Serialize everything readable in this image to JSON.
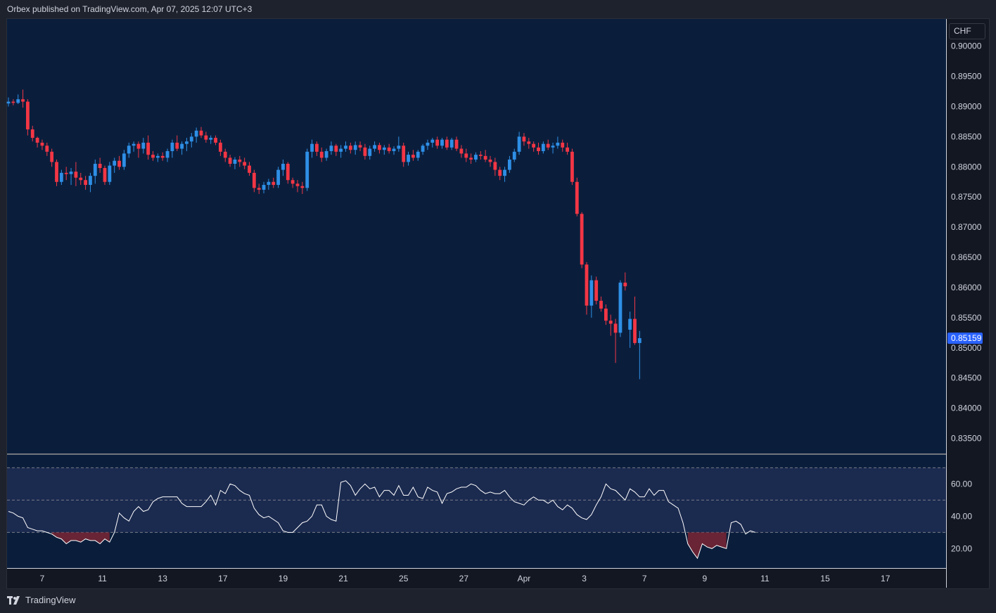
{
  "header": {
    "published": "Orbex published on TradingView.com, Apr 07, 2025 12:07 UTC+3"
  },
  "currency": "CHF",
  "footer": {
    "brand": "TradingView",
    "logo_icon": "tradingview-logo-icon"
  },
  "colors": {
    "up": "#2e8fe6",
    "down": "#f23645",
    "background": "#0a1e3c",
    "rsi_line": "#ffffff",
    "rsi_band": "#1b2a4f",
    "oversold_fill": "#7a2634"
  },
  "chart_data": [
    {
      "type": "candlestick",
      "y_ticks": [
        "0.90000",
        "0.89500",
        "0.89000",
        "0.88500",
        "0.88000",
        "0.87500",
        "0.87000",
        "0.86500",
        "0.86000",
        "0.85500",
        "0.85000",
        "0.84500",
        "0.84000",
        "0.83500"
      ],
      "ylim": [
        0.8325,
        0.9045
      ],
      "x_ticks": [
        {
          "label": "7",
          "index": 7
        },
        {
          "label": "11",
          "index": 19.5
        },
        {
          "label": "13",
          "index": 32
        },
        {
          "label": "17",
          "index": 44.5
        },
        {
          "label": "19",
          "index": 57
        },
        {
          "label": "21",
          "index": 69.5
        },
        {
          "label": "25",
          "index": 82
        },
        {
          "label": "27",
          "index": 94.5
        },
        {
          "label": "Apr",
          "index": 107
        },
        {
          "label": "3",
          "index": 119.5
        },
        {
          "label": "7",
          "index": 132
        },
        {
          "label": "9",
          "index": 144.5
        },
        {
          "label": "11",
          "index": 157
        },
        {
          "label": "15",
          "index": 169.5
        },
        {
          "label": "17",
          "index": 182
        }
      ],
      "last_price": "0.85159",
      "candles": [
        [
          0.8905,
          0.8915,
          0.89,
          0.8908
        ],
        [
          0.8908,
          0.8912,
          0.8902,
          0.8906
        ],
        [
          0.8906,
          0.892,
          0.8904,
          0.8912
        ],
        [
          0.8912,
          0.8928,
          0.8898,
          0.8908
        ],
        [
          0.8908,
          0.8912,
          0.8852,
          0.8862
        ],
        [
          0.8862,
          0.8868,
          0.8842,
          0.8848
        ],
        [
          0.8848,
          0.885,
          0.8832,
          0.884
        ],
        [
          0.884,
          0.8845,
          0.8828,
          0.8835
        ],
        [
          0.8835,
          0.884,
          0.8818,
          0.8825
        ],
        [
          0.8825,
          0.883,
          0.88,
          0.8808
        ],
        [
          0.8808,
          0.8812,
          0.8768,
          0.8775
        ],
        [
          0.8775,
          0.8795,
          0.877,
          0.879
        ],
        [
          0.879,
          0.88,
          0.8778,
          0.8788
        ],
        [
          0.8788,
          0.8798,
          0.877,
          0.8792
        ],
        [
          0.8792,
          0.8808,
          0.8768,
          0.8782
        ],
        [
          0.8782,
          0.879,
          0.877,
          0.8778
        ],
        [
          0.8778,
          0.8785,
          0.8762,
          0.877
        ],
        [
          0.877,
          0.879,
          0.8758,
          0.8785
        ],
        [
          0.8785,
          0.8812,
          0.8772,
          0.8805
        ],
        [
          0.8805,
          0.8815,
          0.879,
          0.8798
        ],
        [
          0.8798,
          0.8802,
          0.877,
          0.8775
        ],
        [
          0.8775,
          0.8808,
          0.877,
          0.8802
        ],
        [
          0.8802,
          0.8815,
          0.879,
          0.881
        ],
        [
          0.881,
          0.8818,
          0.8795,
          0.88
        ],
        [
          0.88,
          0.8828,
          0.8795,
          0.8822
        ],
        [
          0.8822,
          0.884,
          0.8815,
          0.8835
        ],
        [
          0.8835,
          0.8842,
          0.8825,
          0.8838
        ],
        [
          0.8838,
          0.8842,
          0.8815,
          0.883
        ],
        [
          0.883,
          0.8848,
          0.8822,
          0.884
        ],
        [
          0.884,
          0.8852,
          0.8812,
          0.882
        ],
        [
          0.882,
          0.8826,
          0.881,
          0.8815
        ],
        [
          0.8815,
          0.8822,
          0.8808,
          0.8818
        ],
        [
          0.8818,
          0.8824,
          0.881,
          0.8815
        ],
        [
          0.8815,
          0.883,
          0.8808,
          0.8826
        ],
        [
          0.8826,
          0.8845,
          0.8815,
          0.884
        ],
        [
          0.884,
          0.8852,
          0.8826,
          0.883
        ],
        [
          0.883,
          0.8842,
          0.882,
          0.8838
        ],
        [
          0.8838,
          0.8848,
          0.8826,
          0.8842
        ],
        [
          0.8842,
          0.8856,
          0.8832,
          0.885
        ],
        [
          0.885,
          0.8865,
          0.884,
          0.886
        ],
        [
          0.886,
          0.8866,
          0.8848,
          0.8852
        ],
        [
          0.8852,
          0.8858,
          0.884,
          0.8845
        ],
        [
          0.8845,
          0.8852,
          0.8838,
          0.8848
        ],
        [
          0.8848,
          0.8852,
          0.8836,
          0.884
        ],
        [
          0.884,
          0.8845,
          0.8818,
          0.8825
        ],
        [
          0.8825,
          0.883,
          0.8808,
          0.8815
        ],
        [
          0.8815,
          0.882,
          0.88,
          0.8805
        ],
        [
          0.8805,
          0.8816,
          0.8796,
          0.8812
        ],
        [
          0.8812,
          0.8818,
          0.88,
          0.8808
        ],
        [
          0.8808,
          0.8815,
          0.8796,
          0.8802
        ],
        [
          0.8802,
          0.8808,
          0.8785,
          0.879
        ],
        [
          0.879,
          0.8795,
          0.8758,
          0.8765
        ],
        [
          0.8765,
          0.8772,
          0.8755,
          0.8762
        ],
        [
          0.8762,
          0.8775,
          0.8756,
          0.877
        ],
        [
          0.877,
          0.878,
          0.8762,
          0.8775
        ],
        [
          0.8775,
          0.8782,
          0.8765,
          0.877
        ],
        [
          0.877,
          0.88,
          0.8765,
          0.8795
        ],
        [
          0.8795,
          0.8812,
          0.8785,
          0.8805
        ],
        [
          0.8805,
          0.8808,
          0.8772,
          0.8778
        ],
        [
          0.8778,
          0.8782,
          0.8765,
          0.8772
        ],
        [
          0.8772,
          0.8778,
          0.8758,
          0.8768
        ],
        [
          0.8768,
          0.8775,
          0.8755,
          0.8765
        ],
        [
          0.8765,
          0.883,
          0.876,
          0.8825
        ],
        [
          0.8825,
          0.8845,
          0.8815,
          0.8838
        ],
        [
          0.8838,
          0.8842,
          0.8818,
          0.8825
        ],
        [
          0.8825,
          0.8832,
          0.8808,
          0.8815
        ],
        [
          0.8815,
          0.883,
          0.881,
          0.8826
        ],
        [
          0.8826,
          0.8842,
          0.882,
          0.8835
        ],
        [
          0.8835,
          0.8838,
          0.8818,
          0.8825
        ],
        [
          0.8825,
          0.8836,
          0.8815,
          0.883
        ],
        [
          0.883,
          0.8842,
          0.8825,
          0.8835
        ],
        [
          0.8835,
          0.884,
          0.8822,
          0.8828
        ],
        [
          0.8828,
          0.8842,
          0.882,
          0.8836
        ],
        [
          0.8836,
          0.8842,
          0.8826,
          0.8832
        ],
        [
          0.8832,
          0.8838,
          0.8812,
          0.8818
        ],
        [
          0.8818,
          0.8835,
          0.8812,
          0.883
        ],
        [
          0.883,
          0.8842,
          0.8825,
          0.8836
        ],
        [
          0.8836,
          0.884,
          0.8822,
          0.8828
        ],
        [
          0.8828,
          0.8836,
          0.882,
          0.8832
        ],
        [
          0.8832,
          0.8838,
          0.8822,
          0.8826
        ],
        [
          0.8826,
          0.8834,
          0.882,
          0.883
        ],
        [
          0.883,
          0.885,
          0.8825,
          0.8835
        ],
        [
          0.8835,
          0.884,
          0.88,
          0.8808
        ],
        [
          0.8808,
          0.8825,
          0.8802,
          0.882
        ],
        [
          0.882,
          0.8828,
          0.881,
          0.8815
        ],
        [
          0.8815,
          0.8828,
          0.881,
          0.8825
        ],
        [
          0.8825,
          0.8838,
          0.882,
          0.8835
        ],
        [
          0.8835,
          0.8845,
          0.8828,
          0.884
        ],
        [
          0.884,
          0.8848,
          0.8832,
          0.8845
        ],
        [
          0.8845,
          0.885,
          0.883,
          0.8835
        ],
        [
          0.8835,
          0.8848,
          0.883,
          0.8845
        ],
        [
          0.8845,
          0.885,
          0.8828,
          0.8832
        ],
        [
          0.8832,
          0.8848,
          0.8828,
          0.8845
        ],
        [
          0.8845,
          0.885,
          0.8826,
          0.883
        ],
        [
          0.883,
          0.8836,
          0.8815,
          0.8822
        ],
        [
          0.8822,
          0.883,
          0.8808,
          0.8815
        ],
        [
          0.8815,
          0.8822,
          0.8805,
          0.8812
        ],
        [
          0.8812,
          0.8824,
          0.8808,
          0.882
        ],
        [
          0.882,
          0.8826,
          0.8812,
          0.8818
        ],
        [
          0.8818,
          0.8828,
          0.8808,
          0.8812
        ],
        [
          0.8812,
          0.8818,
          0.88,
          0.8808
        ],
        [
          0.8808,
          0.8815,
          0.8785,
          0.8795
        ],
        [
          0.8795,
          0.88,
          0.8778,
          0.8785
        ],
        [
          0.8785,
          0.88,
          0.8775,
          0.8795
        ],
        [
          0.8795,
          0.8818,
          0.879,
          0.8812
        ],
        [
          0.8812,
          0.883,
          0.8808,
          0.8825
        ],
        [
          0.8825,
          0.8858,
          0.882,
          0.885
        ],
        [
          0.885,
          0.8856,
          0.8835,
          0.8842
        ],
        [
          0.8842,
          0.8848,
          0.883,
          0.8838
        ],
        [
          0.8838,
          0.8842,
          0.8825,
          0.8832
        ],
        [
          0.8832,
          0.884,
          0.882,
          0.8826
        ],
        [
          0.8826,
          0.8842,
          0.8822,
          0.8838
        ],
        [
          0.8838,
          0.8845,
          0.8828,
          0.8832
        ],
        [
          0.8832,
          0.884,
          0.8822,
          0.8835
        ],
        [
          0.8835,
          0.885,
          0.883,
          0.884
        ],
        [
          0.884,
          0.8845,
          0.8825,
          0.8832
        ],
        [
          0.8832,
          0.884,
          0.882,
          0.8825
        ],
        [
          0.8825,
          0.883,
          0.877,
          0.8775
        ],
        [
          0.8775,
          0.8782,
          0.8718,
          0.8722
        ],
        [
          0.8722,
          0.8725,
          0.8632,
          0.8638
        ],
        [
          0.8638,
          0.8642,
          0.8555,
          0.857
        ],
        [
          0.857,
          0.862,
          0.855,
          0.8612
        ],
        [
          0.8612,
          0.8618,
          0.8572,
          0.8578
        ],
        [
          0.8578,
          0.8585,
          0.856,
          0.8565
        ],
        [
          0.8565,
          0.8572,
          0.8538,
          0.8545
        ],
        [
          0.8545,
          0.8555,
          0.852,
          0.854
        ],
        [
          0.854,
          0.8548,
          0.8475,
          0.8525
        ],
        [
          0.8525,
          0.8612,
          0.8518,
          0.8608
        ],
        [
          0.8608,
          0.8625,
          0.8595,
          0.8602
        ],
        [
          0.853,
          0.856,
          0.85,
          0.8548
        ],
        [
          0.8548,
          0.8585,
          0.8505,
          0.8508
        ],
        [
          0.8508,
          0.8528,
          0.8448,
          0.8516
        ]
      ]
    },
    {
      "type": "line",
      "name": "RSI",
      "y_ticks": [
        "60.00",
        "40.00",
        "20.00"
      ],
      "ylim": [
        8,
        78
      ],
      "levels": [
        70,
        50,
        30
      ],
      "values": [
        43,
        42,
        40,
        39,
        33,
        32,
        31,
        31,
        30,
        29,
        27,
        26,
        23,
        25,
        25,
        24,
        26,
        25,
        25,
        23,
        26,
        24,
        30,
        42,
        39,
        37,
        43,
        46,
        43,
        44,
        49,
        51,
        52,
        52,
        52,
        52,
        48,
        46,
        46,
        46,
        46,
        49,
        53,
        47,
        56,
        54,
        60,
        59,
        56,
        54,
        53,
        45,
        41,
        39,
        40,
        38,
        36,
        31,
        30,
        30,
        33,
        36,
        37,
        40,
        47,
        47,
        40,
        38,
        37,
        61,
        62,
        59,
        53,
        57,
        60,
        57,
        58,
        52,
        56,
        56,
        53,
        59,
        53,
        53,
        58,
        52,
        51,
        58,
        56,
        55,
        48,
        54,
        55,
        57,
        58,
        58,
        60,
        59,
        56,
        54,
        55,
        54,
        54,
        56,
        52,
        49,
        48,
        47,
        50,
        52,
        50,
        50,
        48,
        50,
        46,
        44,
        47,
        45,
        41,
        39,
        38,
        41,
        47,
        52,
        60,
        57,
        56,
        53,
        50,
        57,
        55,
        52,
        52,
        57,
        53,
        56,
        56,
        49,
        47,
        45,
        36,
        23,
        18,
        14,
        23,
        21,
        20,
        22,
        21,
        20,
        36,
        37,
        35,
        29,
        31,
        30
      ]
    }
  ]
}
